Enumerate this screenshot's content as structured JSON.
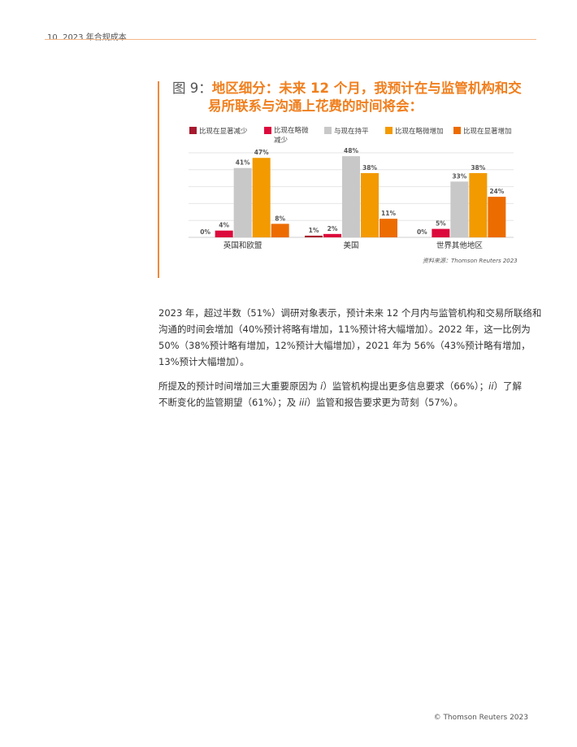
{
  "header": {
    "text": "10  2023 年合规成本"
  },
  "figure": {
    "number": "图 9：",
    "title_line1": "地区细分：未来 12 个月，我预计在与监管机构和交",
    "title_line2": "易所联系与沟通上花费的时间将会：",
    "source": "资料来源：Thomson Reuters 2023"
  },
  "chart_data": {
    "type": "bar",
    "categories": [
      "英国和欧盟",
      "美国",
      "世界其他地区"
    ],
    "ylim": [
      0,
      50
    ],
    "grid": true,
    "legend_position": "top",
    "series": [
      {
        "name": "比现在显著减少",
        "color": "#a6192e",
        "values": [
          0,
          1,
          0
        ],
        "labels": [
          "0%",
          "1%",
          "0%"
        ]
      },
      {
        "name": "比现在略微减少",
        "color": "#dc0a3c",
        "values": [
          4,
          2,
          5
        ],
        "labels": [
          "4%",
          "2%",
          "5%"
        ]
      },
      {
        "name": "与现在持平",
        "color": "#c8c8c8",
        "values": [
          41,
          48,
          33
        ],
        "labels": [
          "41%",
          "48%",
          "33%"
        ]
      },
      {
        "name": "比现在略微增加",
        "color": "#f29a00",
        "values": [
          47,
          38,
          38
        ],
        "labels": [
          "47%",
          "38%",
          "38%"
        ]
      },
      {
        "name": "比现在显著增加",
        "color": "#ec6c00",
        "values": [
          8,
          11,
          24
        ],
        "labels": [
          "8%",
          "11%",
          "24%"
        ]
      }
    ]
  },
  "body": {
    "p1": [
      "2023 年，超过半数（51%）调研对象表示，预计未来 12 个月内与监管机构和交易所联络和",
      "沟通的时间会增加（40%预计将略有增加，11%预计将大幅增加）。2022 年，这一比例为",
      "50%（38%预计略有增加，12%预计大幅增加），2021 年为 56%（43%预计略有增加，",
      "13%预计大幅增加）。"
    ],
    "p2": {
      "a": "所提及的预计时间增加三大重要原因为 ",
      "i1": "i",
      "b": "）监管机构提出更多信息要求（66%）；",
      "i2": "ii",
      "c": "）了解",
      "d": "不断变化的监管期望（61%）；及 ",
      "i3": "iii",
      "e": "）监管和报告要求更为苛刻（57%）。"
    }
  },
  "footer": {
    "text": "© Thomson Reuters 2023"
  }
}
